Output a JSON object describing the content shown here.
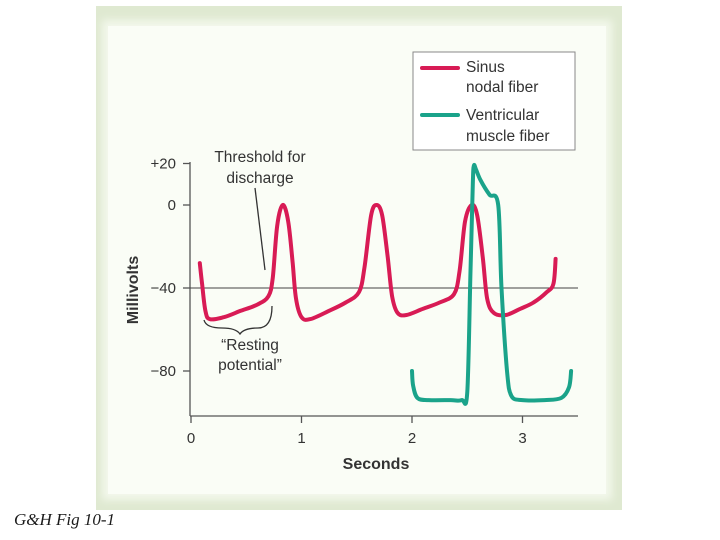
{
  "caption": "G&H Fig 10-1",
  "chart_data": {
    "type": "line",
    "title": "",
    "xlabel": "Seconds",
    "ylabel": "Millivolts",
    "xlim": [
      0,
      3.5
    ],
    "ylim": [
      -100,
      25
    ],
    "x_ticks": [
      0,
      1,
      2,
      3
    ],
    "y_ticks": [
      20,
      0,
      -40,
      -80
    ],
    "y_tick_labels": [
      "+20",
      "0",
      "−40",
      "−80"
    ],
    "threshold": -40,
    "annotations": {
      "threshold_line1": "Threshold for",
      "threshold_line2": "discharge",
      "resting_line1": "“Resting",
      "resting_line2": "potential”"
    },
    "legend": {
      "position": "top-right"
    },
    "series": [
      {
        "name": "Sinus nodal fiber",
        "legend_lines": [
          "Sinus",
          "nodal fiber"
        ],
        "color": "#d81b55",
        "points": [
          [
            0.08,
            -28
          ],
          [
            0.1,
            -38
          ],
          [
            0.13,
            -51
          ],
          [
            0.17,
            -55
          ],
          [
            0.3,
            -54
          ],
          [
            0.45,
            -51
          ],
          [
            0.6,
            -48
          ],
          [
            0.7,
            -44
          ],
          [
            0.74,
            -35
          ],
          [
            0.78,
            -10
          ],
          [
            0.83,
            0
          ],
          [
            0.88,
            -8
          ],
          [
            0.92,
            -28
          ],
          [
            0.95,
            -45
          ],
          [
            1.0,
            -54
          ],
          [
            1.08,
            -55
          ],
          [
            1.25,
            -51
          ],
          [
            1.4,
            -47
          ],
          [
            1.52,
            -42
          ],
          [
            1.57,
            -30
          ],
          [
            1.63,
            -5
          ],
          [
            1.68,
            0
          ],
          [
            1.73,
            -5
          ],
          [
            1.78,
            -25
          ],
          [
            1.82,
            -44
          ],
          [
            1.87,
            -52
          ],
          [
            1.95,
            -53
          ],
          [
            2.1,
            -50
          ],
          [
            2.25,
            -47
          ],
          [
            2.38,
            -43
          ],
          [
            2.43,
            -32
          ],
          [
            2.48,
            -8
          ],
          [
            2.54,
            0
          ],
          [
            2.59,
            -5
          ],
          [
            2.64,
            -25
          ],
          [
            2.68,
            -45
          ],
          [
            2.74,
            -52
          ],
          [
            2.85,
            -53
          ],
          [
            2.98,
            -50
          ],
          [
            3.1,
            -47
          ],
          [
            3.22,
            -42
          ],
          [
            3.28,
            -38
          ],
          [
            3.3,
            -26
          ]
        ]
      },
      {
        "name": "Ventricular muscle fiber",
        "legend_lines": [
          "Ventricular",
          "muscle fiber"
        ],
        "color": "#1aa38a",
        "points": [
          [
            2.0,
            -80
          ],
          [
            2.01,
            -87
          ],
          [
            2.05,
            -93
          ],
          [
            2.15,
            -94
          ],
          [
            2.35,
            -94
          ],
          [
            2.45,
            -94
          ],
          [
            2.5,
            -90
          ],
          [
            2.53,
            -30
          ],
          [
            2.55,
            10
          ],
          [
            2.56,
            19
          ],
          [
            2.58,
            17
          ],
          [
            2.62,
            12
          ],
          [
            2.7,
            5
          ],
          [
            2.78,
            0
          ],
          [
            2.81,
            -40
          ],
          [
            2.86,
            -80
          ],
          [
            2.9,
            -92
          ],
          [
            3.0,
            -94
          ],
          [
            3.2,
            -94
          ],
          [
            3.35,
            -93
          ],
          [
            3.42,
            -88
          ],
          [
            3.44,
            -80
          ]
        ]
      }
    ]
  }
}
